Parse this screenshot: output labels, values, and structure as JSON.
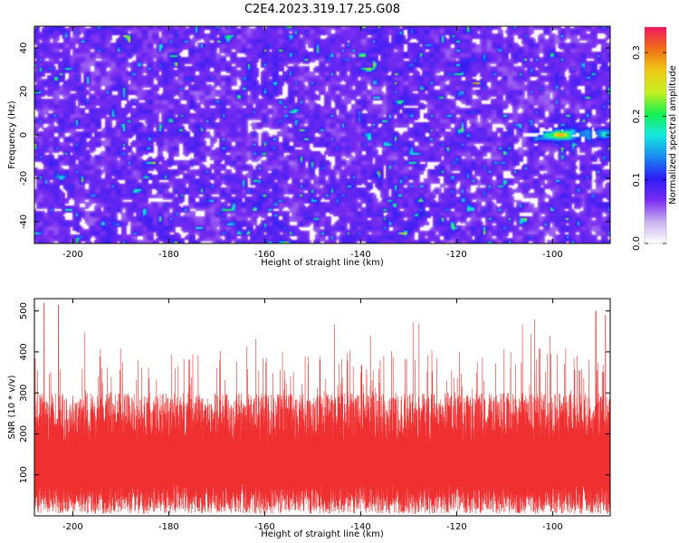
{
  "figure": {
    "title": "C2E4.2023.319.17.25.G08"
  },
  "chart_data": [
    {
      "type": "heatmap",
      "title": "C2E4.2023.319.17.25.G08",
      "xlabel": "Height of straight line (km)",
      "ylabel": "Frequency (Hz)",
      "xlim": [
        -208,
        -88
      ],
      "ylim": [
        -50,
        50
      ],
      "x_ticks": [
        -200,
        -180,
        -160,
        -140,
        -120,
        -100
      ],
      "y_ticks": [
        -40,
        -20,
        0,
        20,
        40
      ],
      "value_range": [
        0.0,
        0.34
      ],
      "colorbar": {
        "label": "Normalized spectral amplitude",
        "ticks": [
          0.0,
          0.1,
          0.2,
          0.3
        ],
        "range": [
          0.0,
          0.34
        ],
        "colors": [
          "#ffffff",
          "#c9b3f0",
          "#7a2cf0",
          "#2b1cf6",
          "#1a8af0",
          "#16e8e0",
          "#18f050",
          "#c8f020",
          "#f0c818",
          "#f07018",
          "#f01860"
        ]
      },
      "background_level": 0.04,
      "features": [
        {
          "desc": "band",
          "x_range": [
            -106,
            -88
          ],
          "y": 0,
          "peak": 0.3,
          "peak_x": -98
        }
      ],
      "grid": false,
      "legend": "none"
    },
    {
      "type": "line",
      "xlabel": "Height of straight line (km)",
      "ylabel": "SNR (10 * v/v)",
      "xlim": [
        -208,
        -88
      ],
      "ylim": [
        0,
        530
      ],
      "x_ticks": [
        -200,
        -180,
        -160,
        -140,
        -120,
        -100
      ],
      "y_ticks": [
        100,
        200,
        300,
        400,
        500
      ],
      "color": "#f03030",
      "envelope": {
        "low_min": 5,
        "low_max": 80,
        "dense_high": 300,
        "peak_max": 520
      },
      "notable_peaks": [
        {
          "x": -206,
          "y": 520
        },
        {
          "x": -203,
          "y": 515
        },
        {
          "x": -91,
          "y": 500
        },
        {
          "x": -89,
          "y": 490
        }
      ],
      "grid": false,
      "legend": "none"
    }
  ]
}
